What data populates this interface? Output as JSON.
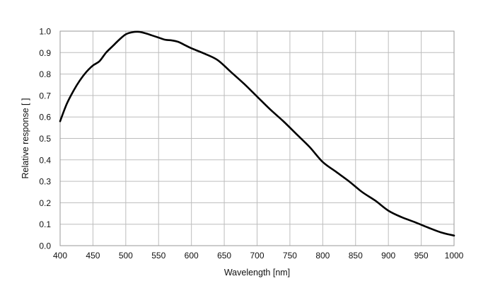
{
  "chart_data": {
    "type": "line",
    "title": "",
    "xlabel": "Wavelength [nm]",
    "ylabel": "Relative response [ ]",
    "xlim": [
      400,
      1000
    ],
    "ylim": [
      0.0,
      1.0
    ],
    "xticks": [
      400,
      450,
      500,
      550,
      600,
      650,
      700,
      750,
      800,
      850,
      900,
      950,
      1000
    ],
    "xtick_labels": [
      "400",
      "450",
      "500",
      "550",
      "600",
      "650",
      "700",
      "750",
      "800",
      "850",
      "900",
      "950",
      "1000"
    ],
    "yticks": [
      0.0,
      0.1,
      0.2,
      0.3,
      0.4,
      0.5,
      0.6,
      0.7,
      0.8,
      0.9,
      1.0
    ],
    "ytick_labels": [
      "0.0",
      "0.1",
      "0.2",
      "0.3",
      "0.4",
      "0.5",
      "0.6",
      "0.7",
      "0.8",
      "0.9",
      "1.0"
    ],
    "grid": true,
    "legend": "none",
    "line_color": "#000000",
    "grid_color": "#bdbdbd",
    "series": [
      {
        "x": [
          400,
          410,
          420,
          430,
          440,
          450,
          460,
          470,
          480,
          490,
          500,
          510,
          520,
          530,
          540,
          550,
          560,
          570,
          580,
          590,
          600,
          620,
          640,
          660,
          680,
          700,
          720,
          740,
          760,
          780,
          800,
          820,
          840,
          860,
          880,
          900,
          920,
          940,
          960,
          980,
          1000
        ],
        "y": [
          0.58,
          0.66,
          0.72,
          0.77,
          0.81,
          0.84,
          0.86,
          0.9,
          0.93,
          0.96,
          0.985,
          0.995,
          0.997,
          0.99,
          0.98,
          0.97,
          0.96,
          0.957,
          0.95,
          0.935,
          0.92,
          0.895,
          0.865,
          0.81,
          0.755,
          0.695,
          0.635,
          0.58,
          0.52,
          0.46,
          0.39,
          0.345,
          0.3,
          0.25,
          0.21,
          0.163,
          0.133,
          0.11,
          0.085,
          0.062,
          0.047
        ]
      }
    ]
  }
}
